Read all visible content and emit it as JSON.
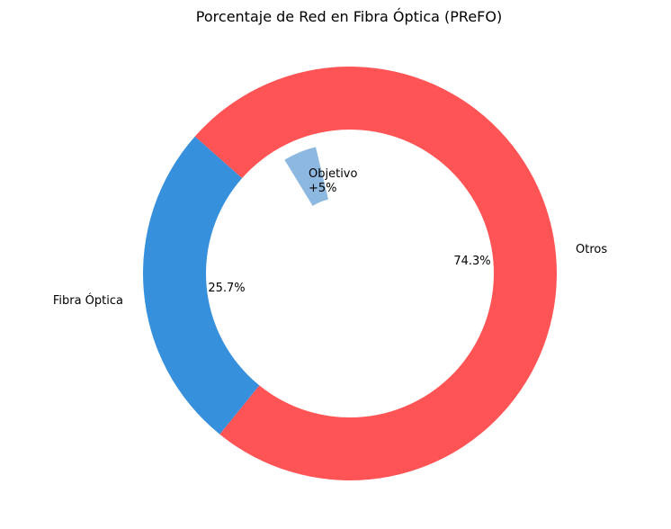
{
  "chart_data": {
    "type": "pie",
    "subtype": "donut",
    "title": "Porcentaje de Red en Fibra Óptica (PReFO)",
    "slices": [
      {
        "label": "Fibra Óptica",
        "value": 25.7,
        "pct_label": "25.7%",
        "color": "#3790dc"
      },
      {
        "label": "Otros",
        "value": 74.3,
        "pct_label": "74.3%",
        "color": "#ff5455"
      }
    ],
    "target_wedge": {
      "label_line1": "Objetivo",
      "label_line2": "+5%",
      "value": 5,
      "color": "#8db8e0"
    }
  }
}
